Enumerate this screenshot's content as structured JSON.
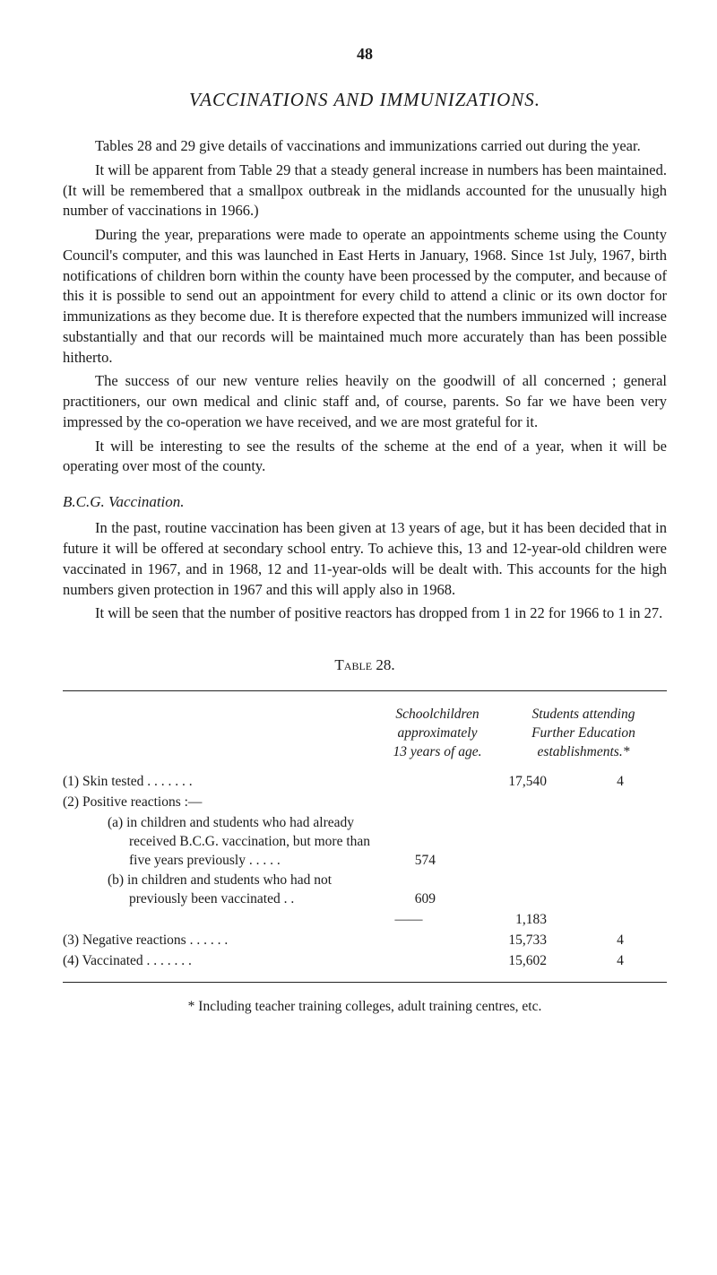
{
  "page_number": "48",
  "title": "VACCINATIONS AND IMMUNIZATIONS.",
  "paragraphs": {
    "p1": "Tables 28 and 29 give details of vaccinations and immunizations carried out during the year.",
    "p2": "It will be apparent from Table 29 that a steady general increase in numbers has been maintained. (It will be remembered that a smallpox outbreak in the midlands accounted for the unusually high number of vaccinations in 1966.)",
    "p3": "During the year, preparations were made to operate an appointments scheme using the County Council's computer, and this was launched in East Herts in January, 1968. Since 1st July, 1967, birth notifications of children born within the county have been processed by the computer, and because of this it is possible to send out an appointment for every child to attend a clinic or its own doctor for immunizations as they become due. It is therefore expected that the numbers immunized will increase substantially and that our records will be maintained much more accurately than has been possible hitherto.",
    "p4": "The success of our new venture relies heavily on the goodwill of all concerned ; general practitioners, our own medical and clinic staff and, of course, parents. So far we have been very impressed by the co-operation we have received, and we are most grateful for it.",
    "p5": "It will be interesting to see the results of the scheme at the end of a year, when it will be operating over most of the county."
  },
  "subheading": "B.C.G. Vaccination.",
  "paragraphs2": {
    "p6": "In the past, routine vaccination has been given at 13 years of age, but it has been decided that in future it will be offered at secondary school entry. To achieve this, 13 and 12-year-old children were vaccinated in 1967, and in 1968, 12 and 11-year-olds will be dealt with. This accounts for the high numbers given protection in 1967 and this will apply also in 1968.",
    "p7": "It will be seen that the number of positive reactors has dropped from 1 in 22 for 1966 to 1 in 27."
  },
  "table": {
    "caption": "Table 28.",
    "col_headers": {
      "col1_l1": "Schoolchildren",
      "col1_l2": "approximately",
      "col1_l3": "13 years of age.",
      "col2_l1": "Students attending",
      "col2_l2": "Further Education",
      "col2_l3": "establishments.*"
    },
    "rows": {
      "r1_label": "(1) Skin tested   .    .    .    .    .    .    .",
      "r1_v1": "17,540",
      "r1_v2": "4",
      "r2_label": "(2) Positive reactions :—",
      "r2a_label": "(a) in children and students who had already received B.C.G. vaccination, but more than five years previously .    .    .    .    .",
      "r2a_mid": "574",
      "r2b_label": "(b) in children and students who had not previously been vaccinated    .    .",
      "r2b_mid": "609",
      "dash_mid": "——",
      "total_v1": "1,183",
      "r3_label": "(3) Negative reactions    .    .    .    .    .    .",
      "r3_v1": "15,733",
      "r3_v2": "4",
      "r4_label": "(4) Vaccinated    .    .    .    .    .    .    .",
      "r4_v1": "15,602",
      "r4_v2": "4"
    }
  },
  "footnote": "* Including teacher training colleges, adult training centres, etc."
}
